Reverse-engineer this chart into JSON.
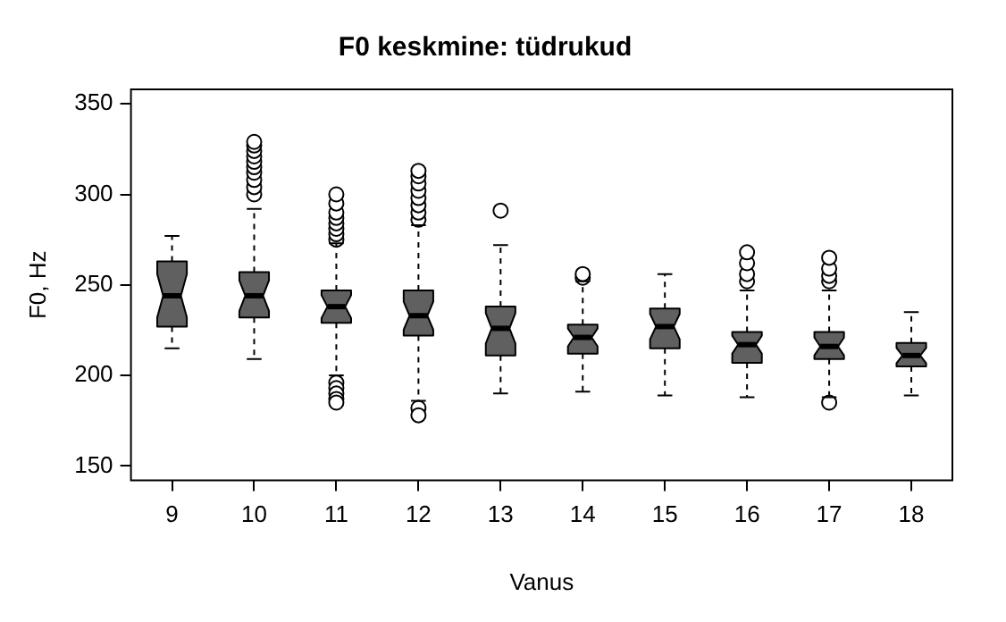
{
  "chart_data": {
    "type": "box",
    "title": "F0 keskmine: tüdrukud",
    "xlabel": "Vanus",
    "ylabel": "F0, Hz",
    "categories": [
      "9",
      "10",
      "11",
      "12",
      "13",
      "14",
      "15",
      "16",
      "17",
      "18"
    ],
    "color": "#606060",
    "boxes": [
      {
        "low": 215,
        "q1": 227,
        "median": 244,
        "q3": 263,
        "high": 277
      },
      {
        "low": 209,
        "q1": 232,
        "median": 244,
        "q3": 257,
        "high": 292,
        "outliers": [
          300,
          304,
          308,
          312,
          315,
          318,
          321,
          324,
          327,
          329
        ]
      },
      {
        "low": 200,
        "q1": 229,
        "median": 238,
        "q3": 247,
        "high": 273,
        "outliers": [
          275,
          278,
          281,
          284,
          287,
          290,
          295,
          300,
          196,
          193,
          190,
          187,
          185
        ]
      },
      {
        "low": 186,
        "q1": 222,
        "median": 233,
        "q3": 247,
        "high": 283,
        "outliers": [
          286,
          290,
          294,
          298,
          302,
          306,
          310,
          313,
          182,
          178
        ]
      },
      {
        "low": 190,
        "q1": 211,
        "median": 226,
        "q3": 238,
        "high": 272,
        "outliers": [
          291
        ]
      },
      {
        "low": 191,
        "q1": 212,
        "median": 221,
        "q3": 228,
        "high": 252,
        "outliers": [
          254,
          256
        ]
      },
      {
        "low": 189,
        "q1": 215,
        "median": 227,
        "q3": 237,
        "high": 256
      },
      {
        "low": 188,
        "q1": 207,
        "median": 217,
        "q3": 224,
        "high": 247,
        "outliers": [
          252,
          256,
          262,
          268
        ]
      },
      {
        "low": 188,
        "q1": 209,
        "median": 216,
        "q3": 224,
        "high": 247,
        "outliers": [
          252,
          255,
          259,
          265,
          185
        ]
      },
      {
        "low": 189,
        "q1": 205,
        "median": 211,
        "q3": 218,
        "high": 235
      }
    ],
    "ylim": [
      142,
      358
    ],
    "yticks": [
      150,
      200,
      250,
      300,
      350
    ],
    "grid": false,
    "legend": false
  }
}
